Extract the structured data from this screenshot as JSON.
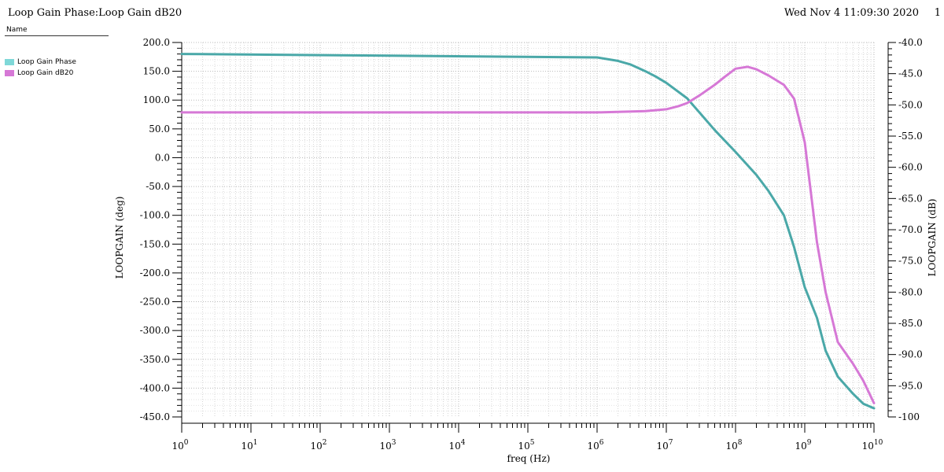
{
  "header": {
    "title": "Loop Gain Phase:Loop Gain dB20",
    "date": "Wed Nov 4 11:09:30 2020",
    "page": "1"
  },
  "legend": {
    "header": "Name",
    "items": [
      {
        "label": "Loop Gain Phase",
        "color": "#7fd8d8"
      },
      {
        "label": "Loop Gain dB20",
        "color": "#d678d6"
      }
    ]
  },
  "chart_data": {
    "type": "line",
    "xlabel": "freq (Hz)",
    "ylabel_left": "LOOPGAIN (deg)",
    "ylabel_right": "LOOPGAIN (dB)",
    "xscale": "log",
    "xlim": [
      1,
      10000000000
    ],
    "ylim_left": [
      -450,
      200
    ],
    "ylim_right": [
      -100,
      -40
    ],
    "grid": true,
    "x_ticks": [
      {
        "base": "10",
        "exp": "0"
      },
      {
        "base": "10",
        "exp": "1"
      },
      {
        "base": "10",
        "exp": "2"
      },
      {
        "base": "10",
        "exp": "3"
      },
      {
        "base": "10",
        "exp": "4"
      },
      {
        "base": "10",
        "exp": "5"
      },
      {
        "base": "10",
        "exp": "6"
      },
      {
        "base": "10",
        "exp": "7"
      },
      {
        "base": "10",
        "exp": "8"
      },
      {
        "base": "10",
        "exp": "9"
      },
      {
        "base": "10",
        "exp": "10"
      }
    ],
    "y_ticks_left": [
      "200.0",
      "150.0",
      "100.0",
      "50.0",
      "0.0",
      "-50.0",
      "-100.0",
      "-150.0",
      "-200.0",
      "-250.0",
      "-300.0",
      "-350.0",
      "-400.0",
      "-450.0"
    ],
    "y_ticks_right": [
      "-40.0",
      "-45.0",
      "-50.0",
      "-55.0",
      "-60.0",
      "-65.0",
      "-70.0",
      "-75.0",
      "-80.0",
      "-85.0",
      "-90.0",
      "-95.0",
      "-100"
    ],
    "series": [
      {
        "name": "Loop Gain Phase",
        "axis": "left",
        "color": "#4aa8a8",
        "x": [
          1,
          1000000,
          2000000,
          3000000,
          5000000,
          7000000,
          10000000,
          20000000,
          50000000,
          100000000,
          200000000,
          300000000,
          500000000,
          700000000,
          1000000000,
          1500000000,
          2000000000,
          3000000000,
          5000000000,
          7000000000,
          10000000000
        ],
        "y": [
          180,
          174,
          168,
          162,
          150,
          141,
          130,
          103,
          48,
          10,
          -30,
          -58,
          -100,
          -155,
          -225,
          -278,
          -335,
          -380,
          -410,
          -427,
          -435
        ]
      },
      {
        "name": "Loop Gain dB20",
        "axis": "right",
        "color": "#d678d6",
        "x": [
          1,
          1000000,
          5000000,
          10000000,
          15000000,
          20000000,
          30000000,
          50000000,
          70000000,
          100000000,
          150000000,
          200000000,
          300000000,
          500000000,
          700000000,
          1000000000,
          1500000000,
          2000000000,
          3000000000,
          5000000000,
          7000000000,
          10000000000
        ],
        "y": [
          -51.2,
          -51.2,
          -51.0,
          -50.7,
          -50.2,
          -49.7,
          -48.5,
          -46.8,
          -45.5,
          -44.2,
          -43.9,
          -44.3,
          -45.3,
          -46.8,
          -49.0,
          -56.0,
          -72.0,
          -80.0,
          -88.0,
          -91.5,
          -94.2,
          -97.8
        ]
      }
    ]
  }
}
